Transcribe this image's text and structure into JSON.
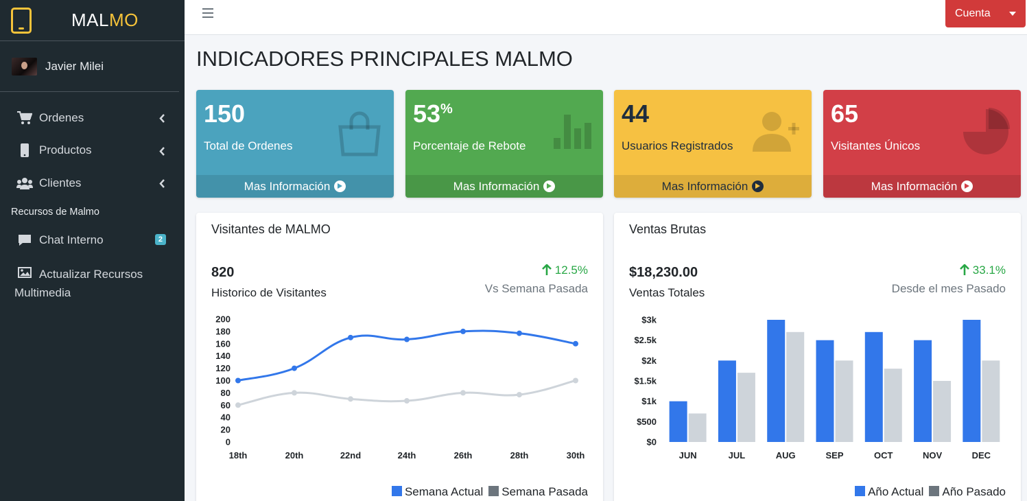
{
  "brand": {
    "name_white": "MAL",
    "name_yellow": "MO"
  },
  "user": {
    "name": "Javier Milei"
  },
  "sidebar": {
    "items": [
      {
        "label": "Ordenes"
      },
      {
        "label": "Productos"
      },
      {
        "label": "Clientes"
      }
    ],
    "section_header": "Recursos de Malmo",
    "chat": {
      "label": "Chat Interno",
      "badge": "2"
    },
    "media": {
      "label_line1": "Actualizar Recursos",
      "label_line2": "Multimedia"
    }
  },
  "topbar": {
    "account_label": "Cuenta"
  },
  "page": {
    "title": "INDICADORES PRINCIPALES MALMO"
  },
  "boxes": [
    {
      "value": "150",
      "suffix": "",
      "label": "Total de Ordenes",
      "footer": "Mas Información",
      "color": "#4ba3be"
    },
    {
      "value": "53",
      "suffix": "%",
      "label": "Porcentaje de Rebote",
      "footer": "Mas Información",
      "color": "#52a950"
    },
    {
      "value": "44",
      "suffix": "",
      "label": "Usuarios Registrados",
      "footer": "Mas Información",
      "color": "#f6c142"
    },
    {
      "value": "65",
      "suffix": "",
      "label": "Visitantes Únicos",
      "footer": "Mas Información",
      "color": "#d23f47"
    }
  ],
  "visitors_card": {
    "title": "Visitantes de MALMO",
    "total": "820",
    "total_label": "Historico de Visitantes",
    "change": "12.5%",
    "change_label": "Vs Semana Pasada",
    "legend": [
      "Semana Actual",
      "Semana Pasada"
    ]
  },
  "sales_card": {
    "title": "Ventas Brutas",
    "total": "$18,230.00",
    "total_label": "Ventas Totales",
    "change": "33.1%",
    "change_label": "Desde el mes Pasado",
    "legend": [
      "Año Actual",
      "Año Pasado"
    ]
  },
  "colors": {
    "primary": "#3277ea",
    "secondary": "#ced4da",
    "success": "#28a745",
    "sidebar": "#1f2a30",
    "accent": "#f6c33a"
  },
  "chart_data": [
    {
      "type": "line",
      "categories": [
        "18th",
        "20th",
        "22nd",
        "24th",
        "26th",
        "28th",
        "30th"
      ],
      "ylim": [
        0,
        200
      ],
      "yticks": [
        0,
        20,
        40,
        60,
        80,
        100,
        120,
        140,
        160,
        180,
        200
      ],
      "series": [
        {
          "name": "Semana Actual",
          "values": [
            100,
            120,
            170,
            167,
            180,
            177,
            160
          ],
          "color": "#3277ea"
        },
        {
          "name": "Semana Pasada",
          "values": [
            60,
            80,
            70,
            67,
            80,
            77,
            100
          ],
          "color": "#ced4da"
        }
      ],
      "grid": false,
      "legend": "bottom-right"
    },
    {
      "type": "bar",
      "categories": [
        "JUN",
        "JUL",
        "AUG",
        "SEP",
        "OCT",
        "NOV",
        "DEC"
      ],
      "ylim": [
        0,
        3000
      ],
      "ytick_values": [
        0,
        500,
        1000,
        1500,
        2000,
        2500,
        3000
      ],
      "ytick_labels": [
        "$0",
        "$500",
        "$1k",
        "$1.5k",
        "$2k",
        "$2.5k",
        "$3k"
      ],
      "series": [
        {
          "name": "Año Actual",
          "values": [
            1000,
            2000,
            3000,
            2500,
            2700,
            2500,
            3000
          ],
          "color": "#3277ea"
        },
        {
          "name": "Año Pasado",
          "values": [
            700,
            1700,
            2700,
            2000,
            1800,
            1500,
            2000
          ],
          "color": "#ced4da"
        }
      ],
      "grid": false,
      "legend": "bottom-right"
    }
  ]
}
